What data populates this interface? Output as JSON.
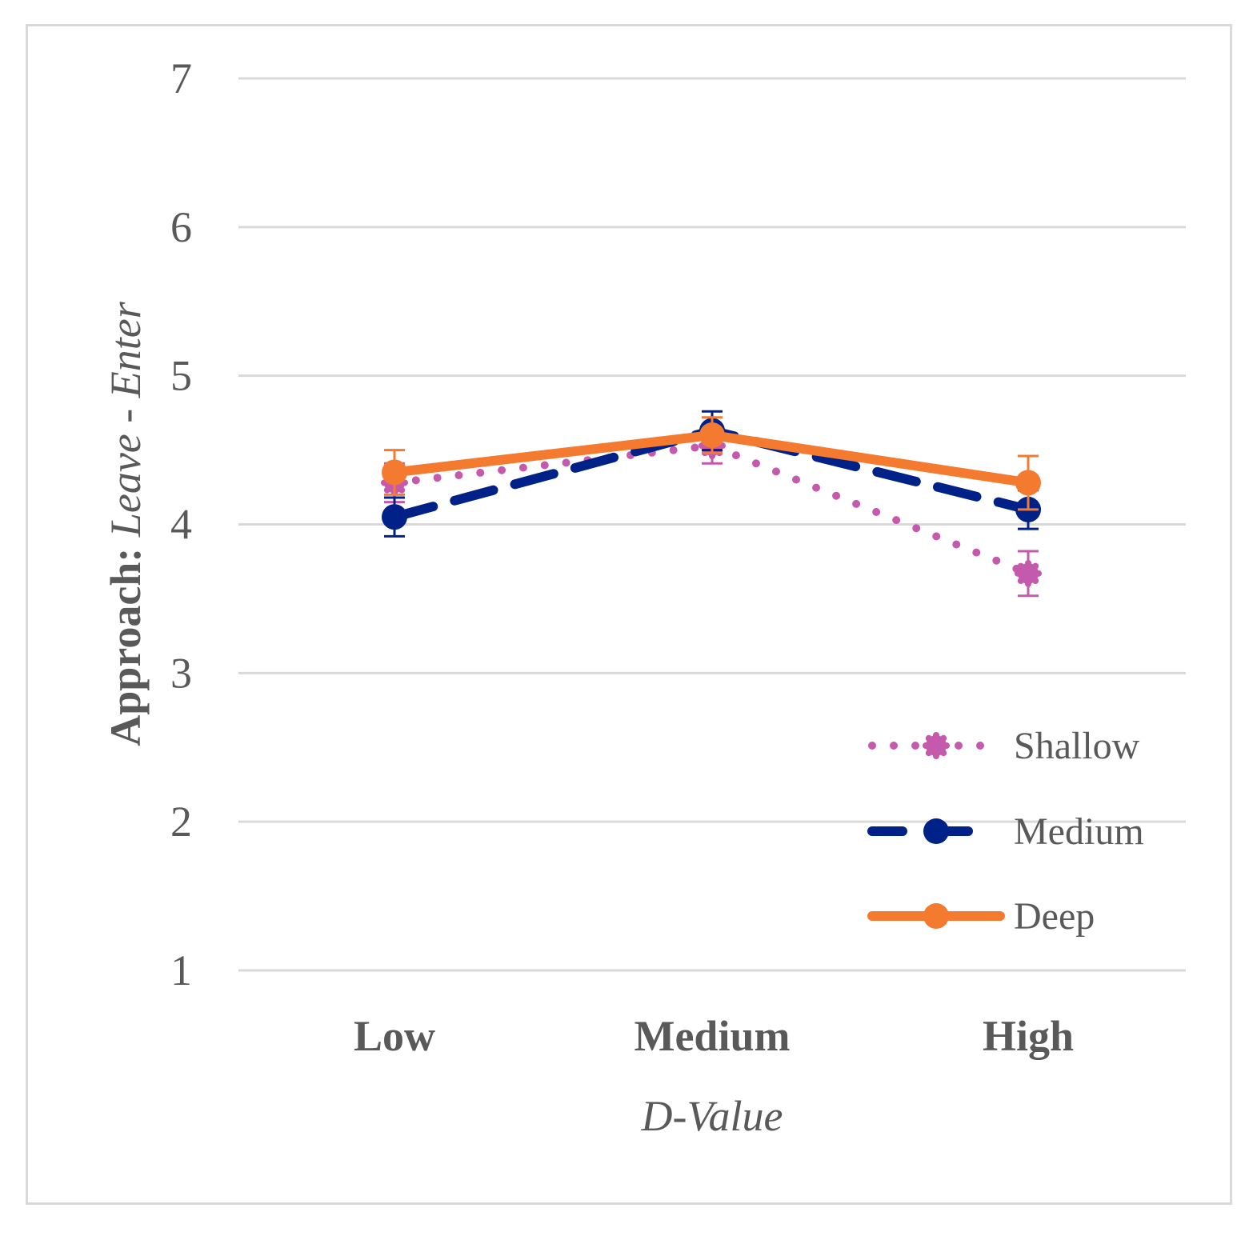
{
  "chart_data": {
    "type": "line",
    "title": "",
    "xlabel": "D-Value",
    "ylabel": {
      "prefix": "Approach: ",
      "italic": "Leave - Enter"
    },
    "ylim": [
      1,
      7
    ],
    "yticks": [
      1,
      2,
      3,
      4,
      5,
      6,
      7
    ],
    "grid": true,
    "categories": [
      "Low",
      "Medium",
      "High"
    ],
    "legend_position": "right",
    "series": [
      {
        "name": "Shallow",
        "values": [
          4.28,
          4.53,
          3.67
        ],
        "errors": [
          0.13,
          0.12,
          0.15
        ],
        "color": "#c55aad",
        "style": "dotted"
      },
      {
        "name": "Medium",
        "values": [
          4.05,
          4.63,
          4.1
        ],
        "errors": [
          0.13,
          0.13,
          0.13
        ],
        "color": "#002288",
        "style": "dashed"
      },
      {
        "name": "Deep",
        "values": [
          4.35,
          4.6,
          4.28
        ],
        "errors": [
          0.15,
          0.12,
          0.18
        ],
        "color": "#f47a30",
        "style": "solid"
      }
    ]
  }
}
